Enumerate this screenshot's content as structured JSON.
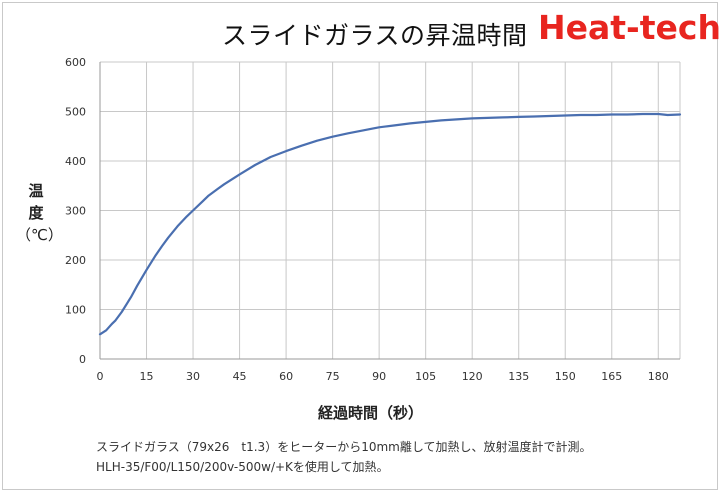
{
  "header": {
    "title": "スライドガラスの昇温時間",
    "brand": "Heat-tech"
  },
  "colors": {
    "line": "#4a6fb0",
    "grid": "#c8c8c8",
    "brand": "#e8251f"
  },
  "notes": {
    "line1": "スライドガラス（79x26　t1.3）をヒーターから10mm離して加熱し、放射温度計で計測。",
    "line2": "HLH-35/F00/L150/200v-500w/+Kを使用して加熱。"
  },
  "chart_data": {
    "type": "line",
    "title": "スライドガラスの昇温時間",
    "ylabel_chars": [
      "温",
      "度"
    ],
    "yunit": "（℃）",
    "xlabel": "経過時間（秒）",
    "xlim": [
      0,
      187
    ],
    "ylim": [
      0,
      600
    ],
    "xticks": [
      0,
      15,
      30,
      45,
      60,
      75,
      90,
      105,
      120,
      135,
      150,
      165,
      180
    ],
    "yticks": [
      0,
      100,
      200,
      300,
      400,
      500,
      600
    ],
    "grid": true,
    "series": [
      {
        "x": [
          0,
          1,
          2,
          3,
          4,
          5,
          7,
          10,
          12,
          15,
          18,
          20,
          22,
          25,
          28,
          30,
          33,
          35,
          38,
          40,
          45,
          50,
          55,
          60,
          65,
          70,
          75,
          80,
          85,
          90,
          95,
          100,
          105,
          110,
          115,
          120,
          125,
          130,
          135,
          140,
          145,
          150,
          155,
          160,
          165,
          170,
          175,
          180,
          183,
          187
        ],
        "y": [
          50,
          54,
          58,
          65,
          72,
          78,
          95,
          125,
          148,
          180,
          210,
          228,
          245,
          268,
          288,
          300,
          318,
          330,
          344,
          353,
          373,
          392,
          408,
          420,
          431,
          441,
          449,
          456,
          462,
          468,
          472,
          476,
          479,
          482,
          484,
          486,
          487,
          488,
          489,
          490,
          491,
          492,
          493,
          493,
          494,
          494,
          495,
          495,
          493,
          494
        ]
      }
    ]
  }
}
